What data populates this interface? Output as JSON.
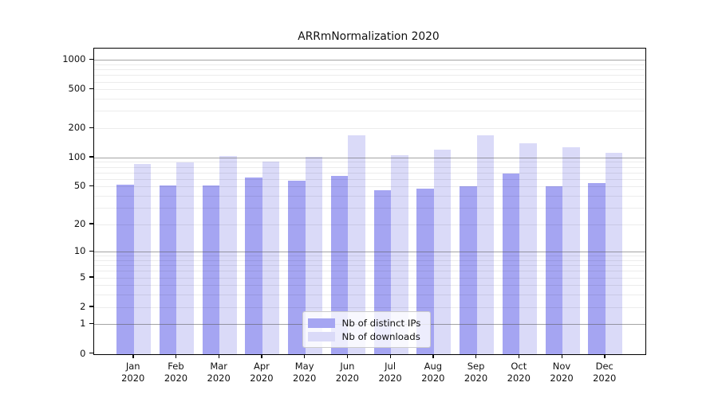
{
  "title": "ARRmNormalization 2020",
  "chart_data": {
    "type": "bar",
    "title": "ARRmNormalization 2020",
    "categories": [
      "Jan",
      "Feb",
      "Mar",
      "Apr",
      "May",
      "Jun",
      "Jul",
      "Aug",
      "Sep",
      "Oct",
      "Nov",
      "Dec"
    ],
    "x_year_label": "2020",
    "series": [
      {
        "name": "Nb of distinct IPs",
        "color": "#a5a5f2",
        "values": [
          52,
          51,
          51,
          62,
          58,
          64,
          46,
          48,
          50,
          68,
          50,
          54
        ]
      },
      {
        "name": "Nb of downloads",
        "color": "#dadaf8",
        "values": [
          85,
          89,
          103,
          90,
          102,
          168,
          105,
          120,
          170,
          140,
          127,
          112
        ]
      }
    ],
    "y_scale": "log1p",
    "y_ticks": [
      0,
      1,
      2,
      5,
      10,
      20,
      50,
      100,
      200,
      500,
      1000
    ],
    "y_axis_top_value": 1306,
    "ylim": [
      0,
      1306
    ],
    "xlabel": "",
    "ylabel": "",
    "grid": true,
    "grid_major_values": [
      1,
      10,
      100,
      1000
    ],
    "legend_position": "lower-center",
    "legend_entries": [
      "Nb of distinct IPs",
      "Nb of downloads"
    ]
  },
  "colors": {
    "background": "#ffffff",
    "spine": "#000000",
    "bar_ips": "#a5a5f2",
    "bar_downloads": "#dadaf8",
    "grid_major": "#5a5a5a",
    "grid_minor": "#e4e4e4",
    "legend_border": "#cccccc"
  }
}
